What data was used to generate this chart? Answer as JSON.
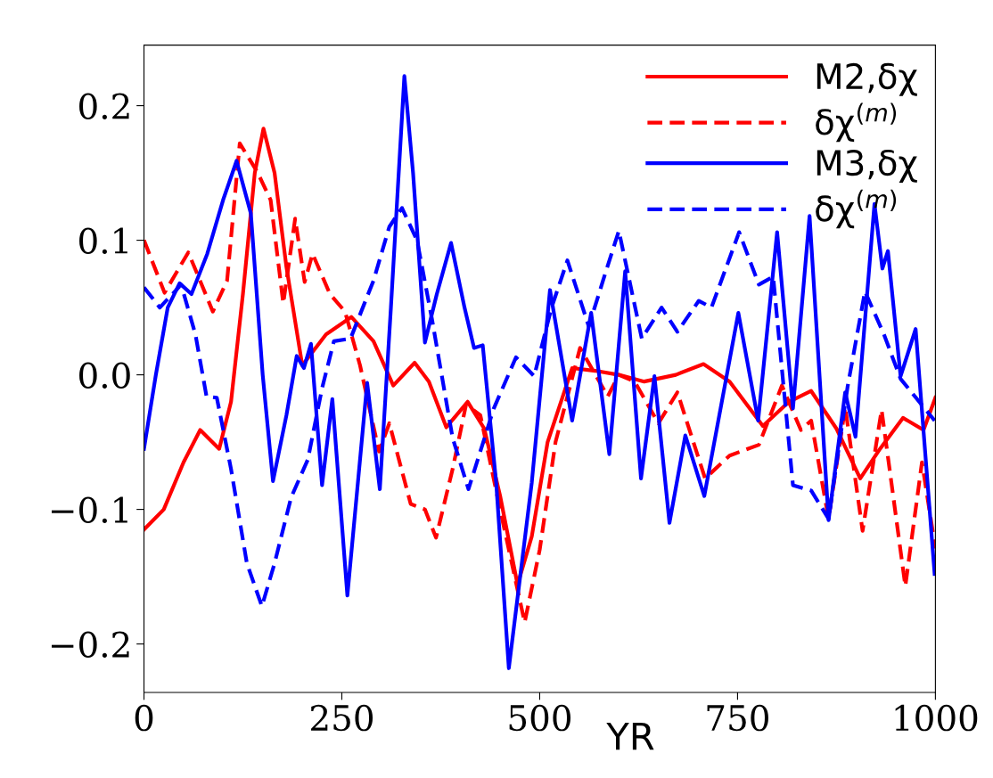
{
  "chart_data": {
    "type": "line",
    "xlabel": "YR",
    "xlim": [
      0,
      1000
    ],
    "xticks": [
      0,
      250,
      500,
      750,
      1000
    ],
    "ylim": [
      -0.236,
      0.245
    ],
    "yticks": [
      {
        "value": -0.2,
        "label": "−0.2"
      },
      {
        "value": -0.1,
        "label": "−0.1"
      },
      {
        "value": 0.0,
        "label": "0.0"
      },
      {
        "value": 0.1,
        "label": "0.1"
      },
      {
        "value": 0.2,
        "label": "0.2"
      }
    ],
    "grid": false,
    "legend": "top right",
    "series": [
      {
        "name": "M2,δχ",
        "color": "#ff0000",
        "line_style": "solid",
        "x": [
          0,
          25,
          50,
          71,
          95,
          110,
          125,
          140,
          151,
          165,
          180,
          200,
          230,
          262,
          290,
          315,
          342,
          360,
          382,
          409,
          430,
          450,
          472,
          490,
          510,
          541,
          570,
          600,
          632,
          672,
          707,
          740,
          782,
          815,
          843,
          875,
          905,
          930,
          959,
          985,
          1000
        ],
        "values": [
          -0.115,
          -0.1,
          -0.065,
          -0.041,
          -0.055,
          -0.02,
          0.06,
          0.15,
          0.183,
          0.15,
          0.08,
          0.007,
          0.03,
          0.043,
          0.025,
          -0.008,
          0.009,
          -0.005,
          -0.039,
          -0.02,
          -0.04,
          -0.09,
          -0.156,
          -0.12,
          -0.05,
          0.005,
          0.003,
          0.0,
          -0.005,
          0.0,
          0.008,
          -0.005,
          -0.038,
          -0.02,
          -0.012,
          -0.04,
          -0.077,
          -0.055,
          -0.032,
          -0.041,
          -0.017
        ]
      },
      {
        "name": "δχ$^{(m)}$",
        "color": "#ff0000",
        "line_style": "dashed",
        "x": [
          0,
          26,
          56,
          87,
          105,
          121,
          143,
          160,
          176,
          191,
          203,
          213,
          235,
          254,
          273,
          297,
          310,
          337,
          355,
          369,
          390,
          407,
          425,
          450,
          481,
          500,
          520,
          551,
          586,
          600,
          620,
          650,
          674,
          709,
          740,
          777,
          806,
          830,
          843,
          865,
          886,
          908,
          932,
          962,
          983,
          1000
        ],
        "values": [
          0.1,
          0.061,
          0.091,
          0.047,
          0.07,
          0.172,
          0.151,
          0.13,
          0.053,
          0.116,
          0.069,
          0.09,
          0.06,
          0.047,
          0.007,
          -0.057,
          -0.036,
          -0.096,
          -0.1,
          -0.121,
          -0.07,
          -0.022,
          -0.03,
          -0.1,
          -0.184,
          -0.13,
          -0.05,
          0.02,
          -0.016,
          0.0,
          -0.005,
          -0.036,
          -0.013,
          -0.077,
          -0.06,
          -0.052,
          -0.008,
          -0.041,
          -0.034,
          -0.107,
          -0.024,
          -0.116,
          -0.026,
          -0.157,
          -0.065,
          -0.129
        ]
      },
      {
        "name": "M3,δχ",
        "color": "#0000ff",
        "line_style": "solid",
        "x": [
          0,
          15,
          30,
          45,
          60,
          80,
          100,
          117,
          135,
          150,
          163,
          180,
          193,
          202,
          211,
          225,
          238,
          257,
          282,
          298,
          312,
          329,
          340,
          355,
          370,
          388,
          405,
          417,
          428,
          445,
          461,
          490,
          513,
          541,
          565,
          588,
          608,
          628,
          645,
          664,
          684,
          708,
          751,
          776,
          800,
          820,
          841,
          865,
          886,
          899,
          923,
          933,
          940,
          956,
          975,
          999
        ],
        "values": [
          -0.055,
          0.0,
          0.05,
          0.068,
          0.06,
          0.09,
          0.13,
          0.159,
          0.12,
          0.0,
          -0.079,
          -0.03,
          0.014,
          0.005,
          0.023,
          -0.082,
          -0.018,
          -0.164,
          -0.006,
          -0.085,
          0.05,
          0.222,
          0.15,
          0.024,
          0.06,
          0.098,
          0.05,
          0.02,
          0.022,
          -0.08,
          -0.218,
          -0.08,
          0.063,
          -0.034,
          0.046,
          -0.059,
          0.077,
          -0.077,
          -0.001,
          -0.11,
          -0.045,
          -0.09,
          0.046,
          -0.034,
          0.106,
          -0.025,
          0.118,
          -0.108,
          -0.013,
          -0.046,
          0.127,
          0.079,
          0.092,
          -0.001,
          0.034,
          -0.148
        ]
      },
      {
        "name": "δχ$^{(m)}$",
        "color": "#0000ff",
        "line_style": "dashed",
        "x": [
          0,
          20,
          47,
          65,
          79,
          92,
          110,
          130,
          149,
          165,
          186,
          207,
          225,
          240,
          261,
          290,
          310,
          326,
          345,
          364,
          390,
          410,
          442,
          470,
          493,
          515,
          535,
          562,
          580,
          600,
          629,
          654,
          674,
          701,
          717,
          752,
          777,
          795,
          820,
          843,
          865,
          889,
          911,
          935,
          956,
          999
        ],
        "values": [
          0.065,
          0.05,
          0.067,
          0.03,
          -0.016,
          -0.017,
          -0.07,
          -0.14,
          -0.172,
          -0.14,
          -0.091,
          -0.063,
          -0.01,
          0.025,
          0.027,
          0.07,
          0.11,
          0.124,
          0.1,
          0.041,
          -0.047,
          -0.085,
          -0.025,
          0.013,
          -0.001,
          0.05,
          0.085,
          0.036,
          0.07,
          0.107,
          0.027,
          0.05,
          0.032,
          0.055,
          0.05,
          0.106,
          0.067,
          0.073,
          -0.082,
          -0.086,
          -0.107,
          -0.009,
          0.062,
          0.03,
          -0.003,
          -0.034
        ]
      }
    ]
  }
}
